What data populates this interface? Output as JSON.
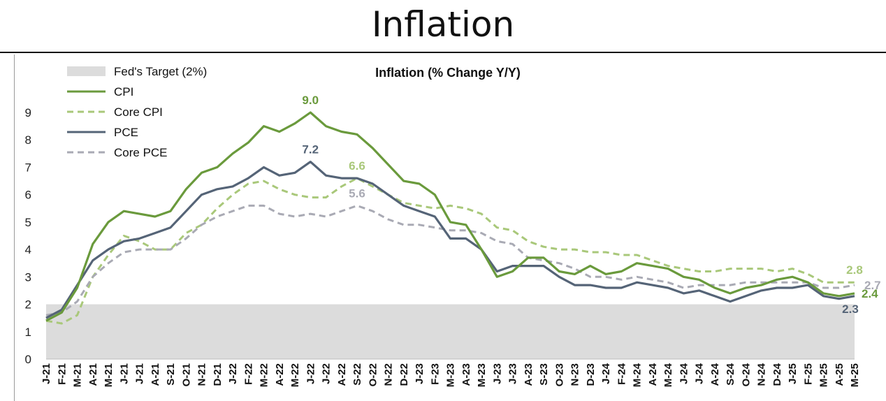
{
  "page": {
    "title": "Inflation"
  },
  "colors": {
    "cpi": "#6a9a3c",
    "core_cpi": "#a9c87a",
    "pce": "#556477",
    "core_pce": "#a9aab4",
    "target_band": "#dcdcdc"
  },
  "chart_data": {
    "type": "line",
    "title": "Inflation (% Change Y/Y)",
    "xlabel": "",
    "ylabel": "",
    "ylim": [
      0,
      9
    ],
    "yticks": [
      "0",
      "1",
      "2",
      "3",
      "4",
      "5",
      "6",
      "7",
      "8",
      "9"
    ],
    "grid": false,
    "legend_position": "top-left",
    "target_band": {
      "name": "Fed's Target (2%)",
      "from": 0,
      "to": 2
    },
    "categories": [
      "J-21",
      "F-21",
      "M-21",
      "A-21",
      "M-21",
      "J-21",
      "J-21",
      "A-21",
      "S-21",
      "O-21",
      "N-21",
      "D-21",
      "J-22",
      "F-22",
      "M-22",
      "A-22",
      "M-22",
      "J-22",
      "J-22",
      "A-22",
      "S-22",
      "O-22",
      "N-22",
      "D-22",
      "J-23",
      "F-23",
      "M-23",
      "A-23",
      "M-23",
      "J-23",
      "J-23",
      "A-23",
      "S-23",
      "O-23",
      "N-23",
      "D-23",
      "J-24",
      "F-24",
      "M-24",
      "A-24",
      "M-24",
      "J-24",
      "J-24",
      "A-24",
      "S-24",
      "O-24",
      "N-24",
      "D-24",
      "J-25",
      "F-25",
      "M-25",
      "A-25",
      "M-25"
    ],
    "series": [
      {
        "name": "CPI",
        "color_key": "cpi",
        "dash": false,
        "values": [
          1.4,
          1.7,
          2.6,
          4.2,
          5.0,
          5.4,
          5.3,
          5.2,
          5.4,
          6.2,
          6.8,
          7.0,
          7.5,
          7.9,
          8.5,
          8.3,
          8.6,
          9.0,
          8.5,
          8.3,
          8.2,
          7.7,
          7.1,
          6.5,
          6.4,
          6.0,
          5.0,
          4.9,
          4.0,
          3.0,
          3.2,
          3.7,
          3.7,
          3.2,
          3.1,
          3.4,
          3.1,
          3.2,
          3.5,
          3.4,
          3.3,
          3.0,
          2.9,
          2.6,
          2.4,
          2.6,
          2.7,
          2.9,
          3.0,
          2.8,
          2.4,
          2.3,
          2.4
        ],
        "labels": [
          {
            "index": 17,
            "text": "9.0"
          },
          {
            "index": 52,
            "text": "2.4"
          }
        ]
      },
      {
        "name": "Core CPI",
        "color_key": "core_cpi",
        "dash": true,
        "values": [
          1.4,
          1.3,
          1.6,
          3.0,
          3.8,
          4.5,
          4.3,
          4.0,
          4.0,
          4.6,
          4.9,
          5.5,
          6.0,
          6.4,
          6.5,
          6.2,
          6.0,
          5.9,
          5.9,
          6.3,
          6.6,
          6.3,
          6.0,
          5.7,
          5.6,
          5.5,
          5.6,
          5.5,
          5.3,
          4.8,
          4.7,
          4.3,
          4.1,
          4.0,
          4.0,
          3.9,
          3.9,
          3.8,
          3.8,
          3.6,
          3.4,
          3.3,
          3.2,
          3.2,
          3.3,
          3.3,
          3.3,
          3.2,
          3.3,
          3.1,
          2.8,
          2.8,
          2.8
        ],
        "labels": [
          {
            "index": 20,
            "text": "6.6"
          },
          {
            "index": 52,
            "text": "2.8"
          }
        ]
      },
      {
        "name": "PCE",
        "color_key": "pce",
        "dash": false,
        "values": [
          1.5,
          1.8,
          2.7,
          3.6,
          4.0,
          4.3,
          4.4,
          4.6,
          4.8,
          5.4,
          6.0,
          6.2,
          6.3,
          6.6,
          7.0,
          6.7,
          6.8,
          7.2,
          6.7,
          6.6,
          6.6,
          6.4,
          6.0,
          5.6,
          5.4,
          5.2,
          4.4,
          4.4,
          4.0,
          3.2,
          3.4,
          3.4,
          3.4,
          3.0,
          2.7,
          2.7,
          2.6,
          2.6,
          2.8,
          2.7,
          2.6,
          2.4,
          2.5,
          2.3,
          2.1,
          2.3,
          2.5,
          2.6,
          2.6,
          2.7,
          2.3,
          2.2,
          2.3
        ],
        "labels": [
          {
            "index": 17,
            "text": "7.2"
          },
          {
            "index": 52,
            "text": "2.3"
          }
        ]
      },
      {
        "name": "Core PCE",
        "color_key": "core_pce",
        "dash": true,
        "values": [
          1.6,
          1.7,
          2.1,
          3.0,
          3.5,
          3.9,
          4.0,
          4.0,
          4.0,
          4.4,
          4.9,
          5.2,
          5.4,
          5.6,
          5.6,
          5.3,
          5.2,
          5.3,
          5.2,
          5.4,
          5.6,
          5.4,
          5.1,
          4.9,
          4.9,
          4.8,
          4.7,
          4.7,
          4.6,
          4.3,
          4.2,
          3.7,
          3.6,
          3.5,
          3.3,
          3.0,
          3.0,
          2.9,
          3.0,
          2.9,
          2.8,
          2.6,
          2.7,
          2.7,
          2.7,
          2.8,
          2.8,
          2.8,
          2.8,
          2.8,
          2.6,
          2.6,
          2.7
        ],
        "labels": [
          {
            "index": 20,
            "text": "5.6"
          },
          {
            "index": 52,
            "text": "2.7"
          }
        ]
      }
    ]
  }
}
